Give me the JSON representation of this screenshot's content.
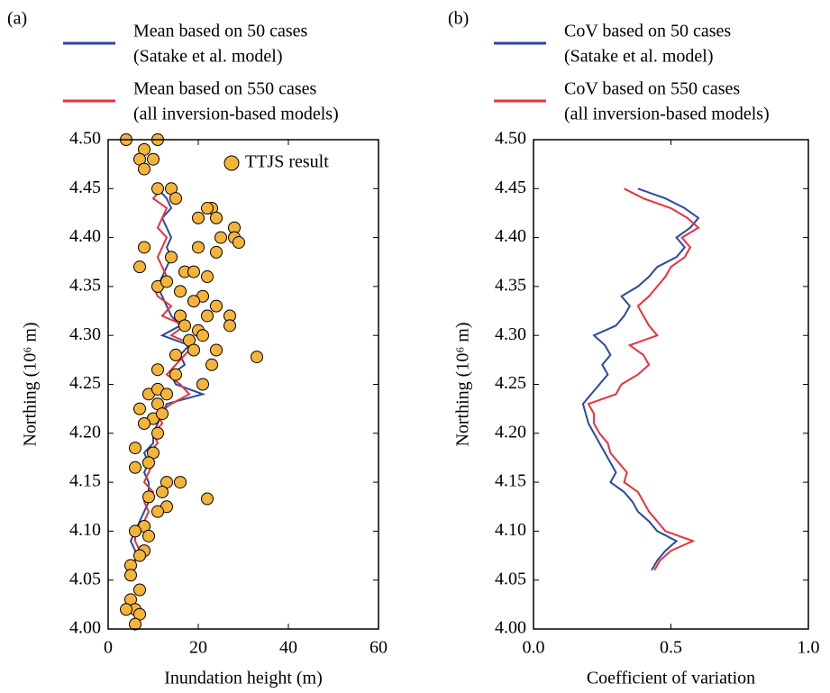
{
  "chart_data": [
    {
      "type": "line",
      "panel_label": "(a)",
      "xlabel": "Inundation height (m)",
      "ylabel": "Northing (10⁶ m)",
      "xlim": [
        0,
        60
      ],
      "ylim": [
        4,
        4.5
      ],
      "xticks": [
        0,
        20,
        40,
        60
      ],
      "yticks": [
        {
          "value": 4,
          "label": "4.00"
        },
        4.05,
        {
          "value": 4.1,
          "label": "4.10"
        },
        4.15,
        {
          "value": 4.2,
          "label": "4.20"
        },
        4.25,
        {
          "value": 4.3,
          "label": "4.30"
        },
        4.35,
        {
          "value": 4.4,
          "label": "4.40"
        },
        4.45,
        {
          "value": 4.5,
          "label": "4.50"
        }
      ],
      "y": [
        4.06,
        4.07,
        4.08,
        4.09,
        4.1,
        4.11,
        4.12,
        4.13,
        4.14,
        4.15,
        4.16,
        4.17,
        4.18,
        4.19,
        4.2,
        4.21,
        4.22,
        4.23,
        4.24,
        4.25,
        4.26,
        4.27,
        4.28,
        4.29,
        4.3,
        4.31,
        4.32,
        4.33,
        4.34,
        4.35,
        4.36,
        4.37,
        4.38,
        4.39,
        4.4,
        4.41,
        4.42,
        4.43,
        4.44,
        4.45
      ],
      "series": [
        {
          "name": [
            "Mean based on 50 cases",
            "(Satake et al. model)"
          ],
          "color": "#2a4aa0",
          "values": [
            5,
            6,
            6,
            5,
            6,
            7,
            8,
            9,
            9,
            9,
            8,
            9,
            8,
            10,
            10,
            11,
            12,
            13,
            21,
            15,
            14,
            17,
            16,
            18,
            12,
            16,
            14,
            13,
            12,
            11,
            12,
            13,
            14,
            13,
            14,
            13,
            12,
            14,
            13,
            11
          ]
        },
        {
          "name": [
            "Mean based on 550 cases",
            "(all inversion-based models)"
          ],
          "color": "#e8323c",
          "values": [
            5,
            6,
            7,
            6,
            6,
            8,
            9,
            8,
            10,
            8,
            9,
            10,
            9,
            11,
            10,
            12,
            11,
            14,
            18,
            16,
            13,
            15,
            17,
            19,
            14,
            17,
            12,
            14,
            11,
            10,
            13,
            12,
            11,
            12,
            13,
            11,
            12,
            13,
            10,
            12
          ]
        }
      ],
      "scatter": {
        "name": "TTJS result",
        "color": "#f4b43a",
        "x": [
          4,
          8,
          11,
          7,
          10,
          8,
          14,
          11,
          15,
          23,
          22,
          24,
          20,
          28,
          28,
          25,
          29,
          24,
          20,
          8,
          14,
          17,
          19,
          22,
          7,
          11,
          13,
          16,
          21,
          19,
          24,
          27,
          22,
          16,
          17,
          27,
          20,
          18,
          21,
          24,
          19,
          33,
          15,
          23,
          11,
          15,
          21,
          9,
          11,
          13,
          7,
          11,
          10,
          8,
          12,
          11,
          6,
          10,
          9,
          6,
          13,
          16,
          22,
          12,
          9,
          13,
          11,
          8,
          6,
          9,
          8,
          7,
          5,
          5,
          7,
          5,
          6,
          4,
          7,
          6
        ],
        "y": [
          4.5,
          4.49,
          4.5,
          4.48,
          4.48,
          4.47,
          4.45,
          4.45,
          4.44,
          4.43,
          4.43,
          4.42,
          4.42,
          4.41,
          4.4,
          4.4,
          4.395,
          4.385,
          4.39,
          4.39,
          4.38,
          4.365,
          4.365,
          4.36,
          4.37,
          4.35,
          4.355,
          4.345,
          4.34,
          4.335,
          4.33,
          4.32,
          4.32,
          4.32,
          4.31,
          4.31,
          4.305,
          4.295,
          4.3,
          4.285,
          4.285,
          4.278,
          4.28,
          4.27,
          4.265,
          4.26,
          4.25,
          4.24,
          4.245,
          4.24,
          4.225,
          4.23,
          4.215,
          4.21,
          4.22,
          4.2,
          4.185,
          4.18,
          4.17,
          4.165,
          4.15,
          4.15,
          4.133,
          4.14,
          4.135,
          4.125,
          4.12,
          4.105,
          4.1,
          4.095,
          4.08,
          4.075,
          4.065,
          4.055,
          4.04,
          4.03,
          4.02,
          4.02,
          4.015,
          4.005
        ]
      }
    },
    {
      "type": "line",
      "panel_label": "(b)",
      "xlabel": "Coefficient of variation",
      "ylabel": "Northing (10⁶ m)",
      "xlim": [
        0,
        1
      ],
      "ylim": [
        4,
        4.5
      ],
      "xticks": [
        {
          "value": 0,
          "label": "0.0"
        },
        0.5,
        {
          "value": 1,
          "label": "1.0"
        }
      ],
      "yticks": [
        {
          "value": 4,
          "label": "4.00"
        },
        4.05,
        {
          "value": 4.1,
          "label": "4.10"
        },
        4.15,
        {
          "value": 4.2,
          "label": "4.20"
        },
        4.25,
        {
          "value": 4.3,
          "label": "4.30"
        },
        4.35,
        {
          "value": 4.4,
          "label": "4.40"
        },
        4.45,
        {
          "value": 4.5,
          "label": "4.50"
        }
      ],
      "y": [
        4.06,
        4.07,
        4.08,
        4.09,
        4.1,
        4.11,
        4.12,
        4.13,
        4.14,
        4.15,
        4.16,
        4.17,
        4.18,
        4.19,
        4.2,
        4.21,
        4.22,
        4.23,
        4.24,
        4.25,
        4.26,
        4.27,
        4.28,
        4.29,
        4.3,
        4.31,
        4.32,
        4.33,
        4.34,
        4.35,
        4.36,
        4.37,
        4.38,
        4.39,
        4.4,
        4.41,
        4.42,
        4.43,
        4.44,
        4.45
      ],
      "series": [
        {
          "name": [
            "CoV based on 50 cases",
            "(Satake et al. model)"
          ],
          "color": "#2a4aa0",
          "values": [
            0.43,
            0.45,
            0.48,
            0.52,
            0.45,
            0.42,
            0.38,
            0.36,
            0.33,
            0.28,
            0.3,
            0.28,
            0.26,
            0.24,
            0.22,
            0.2,
            0.19,
            0.18,
            0.21,
            0.24,
            0.27,
            0.25,
            0.28,
            0.26,
            0.22,
            0.3,
            0.33,
            0.35,
            0.32,
            0.38,
            0.42,
            0.45,
            0.52,
            0.55,
            0.52,
            0.57,
            0.6,
            0.55,
            0.48,
            0.38
          ]
        },
        {
          "name": [
            "CoV based on 550 cases",
            "(all inversion-based models)"
          ],
          "color": "#e8323c",
          "values": [
            0.44,
            0.46,
            0.5,
            0.58,
            0.48,
            0.45,
            0.42,
            0.4,
            0.38,
            0.33,
            0.34,
            0.31,
            0.28,
            0.27,
            0.24,
            0.22,
            0.22,
            0.2,
            0.3,
            0.32,
            0.38,
            0.42,
            0.4,
            0.35,
            0.45,
            0.42,
            0.4,
            0.38,
            0.42,
            0.45,
            0.48,
            0.5,
            0.55,
            0.57,
            0.54,
            0.6,
            0.56,
            0.5,
            0.4,
            0.33
          ]
        }
      ]
    }
  ]
}
